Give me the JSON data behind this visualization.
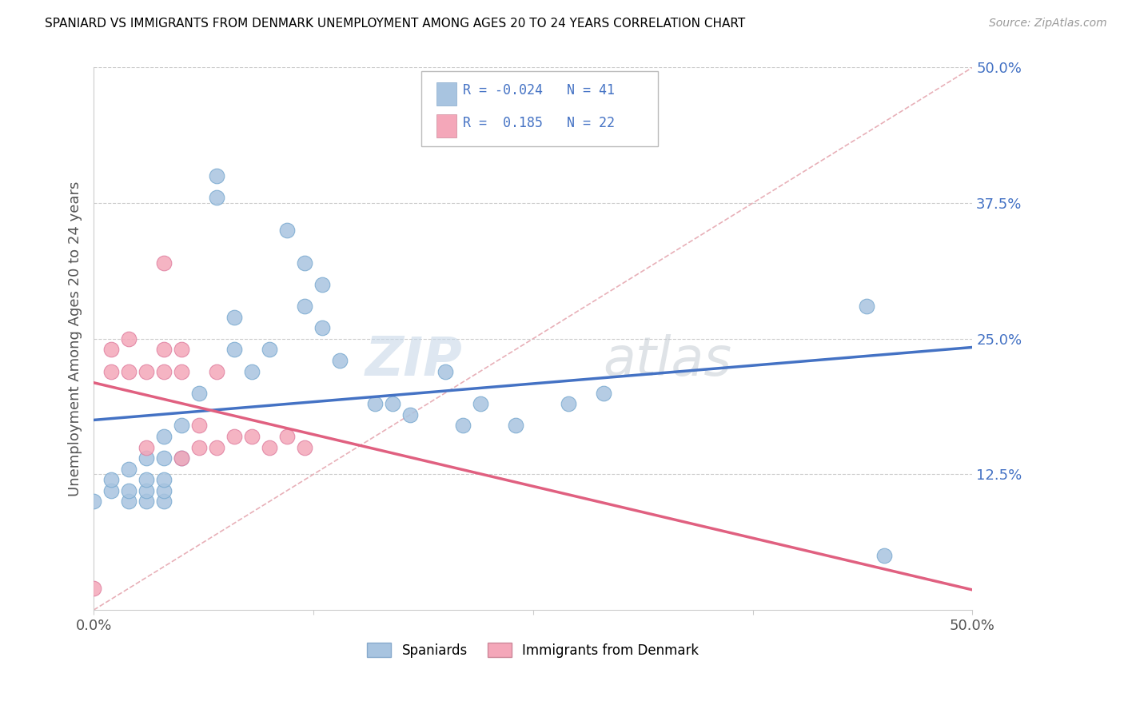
{
  "title": "SPANIARD VS IMMIGRANTS FROM DENMARK UNEMPLOYMENT AMONG AGES 20 TO 24 YEARS CORRELATION CHART",
  "source": "Source: ZipAtlas.com",
  "ylabel": "Unemployment Among Ages 20 to 24 years",
  "xlim": [
    0.0,
    0.5
  ],
  "ylim": [
    0.0,
    0.5
  ],
  "xticks": [
    0.0,
    0.125,
    0.25,
    0.375,
    0.5
  ],
  "xticklabels": [
    "0.0%",
    "",
    "",
    "",
    "50.0%"
  ],
  "yticks": [
    0.125,
    0.25,
    0.375,
    0.5
  ],
  "yticklabels": [
    "12.5%",
    "25.0%",
    "37.5%",
    "50.0%"
  ],
  "spaniards_r": -0.024,
  "spaniards_n": 41,
  "denmark_r": 0.185,
  "denmark_n": 22,
  "spaniards_color": "#a8c4e0",
  "denmark_color": "#f4a7b9",
  "spaniards_line_color": "#4472c4",
  "denmark_line_color": "#e06080",
  "diagonal_color": "#e8b0b8",
  "watermark_zip": "ZIP",
  "watermark_atlas": "atlas",
  "spaniards_x": [
    0.0,
    0.01,
    0.01,
    0.02,
    0.02,
    0.02,
    0.03,
    0.03,
    0.03,
    0.03,
    0.04,
    0.04,
    0.04,
    0.04,
    0.04,
    0.05,
    0.05,
    0.06,
    0.07,
    0.07,
    0.08,
    0.08,
    0.09,
    0.1,
    0.11,
    0.12,
    0.12,
    0.13,
    0.13,
    0.14,
    0.16,
    0.17,
    0.18,
    0.2,
    0.21,
    0.22,
    0.24,
    0.27,
    0.29,
    0.44,
    0.45
  ],
  "spaniards_y": [
    0.1,
    0.11,
    0.12,
    0.1,
    0.11,
    0.13,
    0.1,
    0.11,
    0.12,
    0.14,
    0.1,
    0.11,
    0.12,
    0.14,
    0.16,
    0.14,
    0.17,
    0.2,
    0.38,
    0.4,
    0.24,
    0.27,
    0.22,
    0.24,
    0.35,
    0.28,
    0.32,
    0.26,
    0.3,
    0.23,
    0.19,
    0.19,
    0.18,
    0.22,
    0.17,
    0.19,
    0.17,
    0.19,
    0.2,
    0.28,
    0.05
  ],
  "denmark_x": [
    0.0,
    0.01,
    0.01,
    0.02,
    0.02,
    0.03,
    0.03,
    0.04,
    0.04,
    0.04,
    0.05,
    0.05,
    0.05,
    0.06,
    0.06,
    0.07,
    0.07,
    0.08,
    0.09,
    0.1,
    0.11,
    0.12
  ],
  "denmark_y": [
    0.02,
    0.22,
    0.24,
    0.22,
    0.25,
    0.15,
    0.22,
    0.22,
    0.24,
    0.32,
    0.22,
    0.24,
    0.14,
    0.15,
    0.17,
    0.15,
    0.22,
    0.16,
    0.16,
    0.15,
    0.16,
    0.15
  ]
}
